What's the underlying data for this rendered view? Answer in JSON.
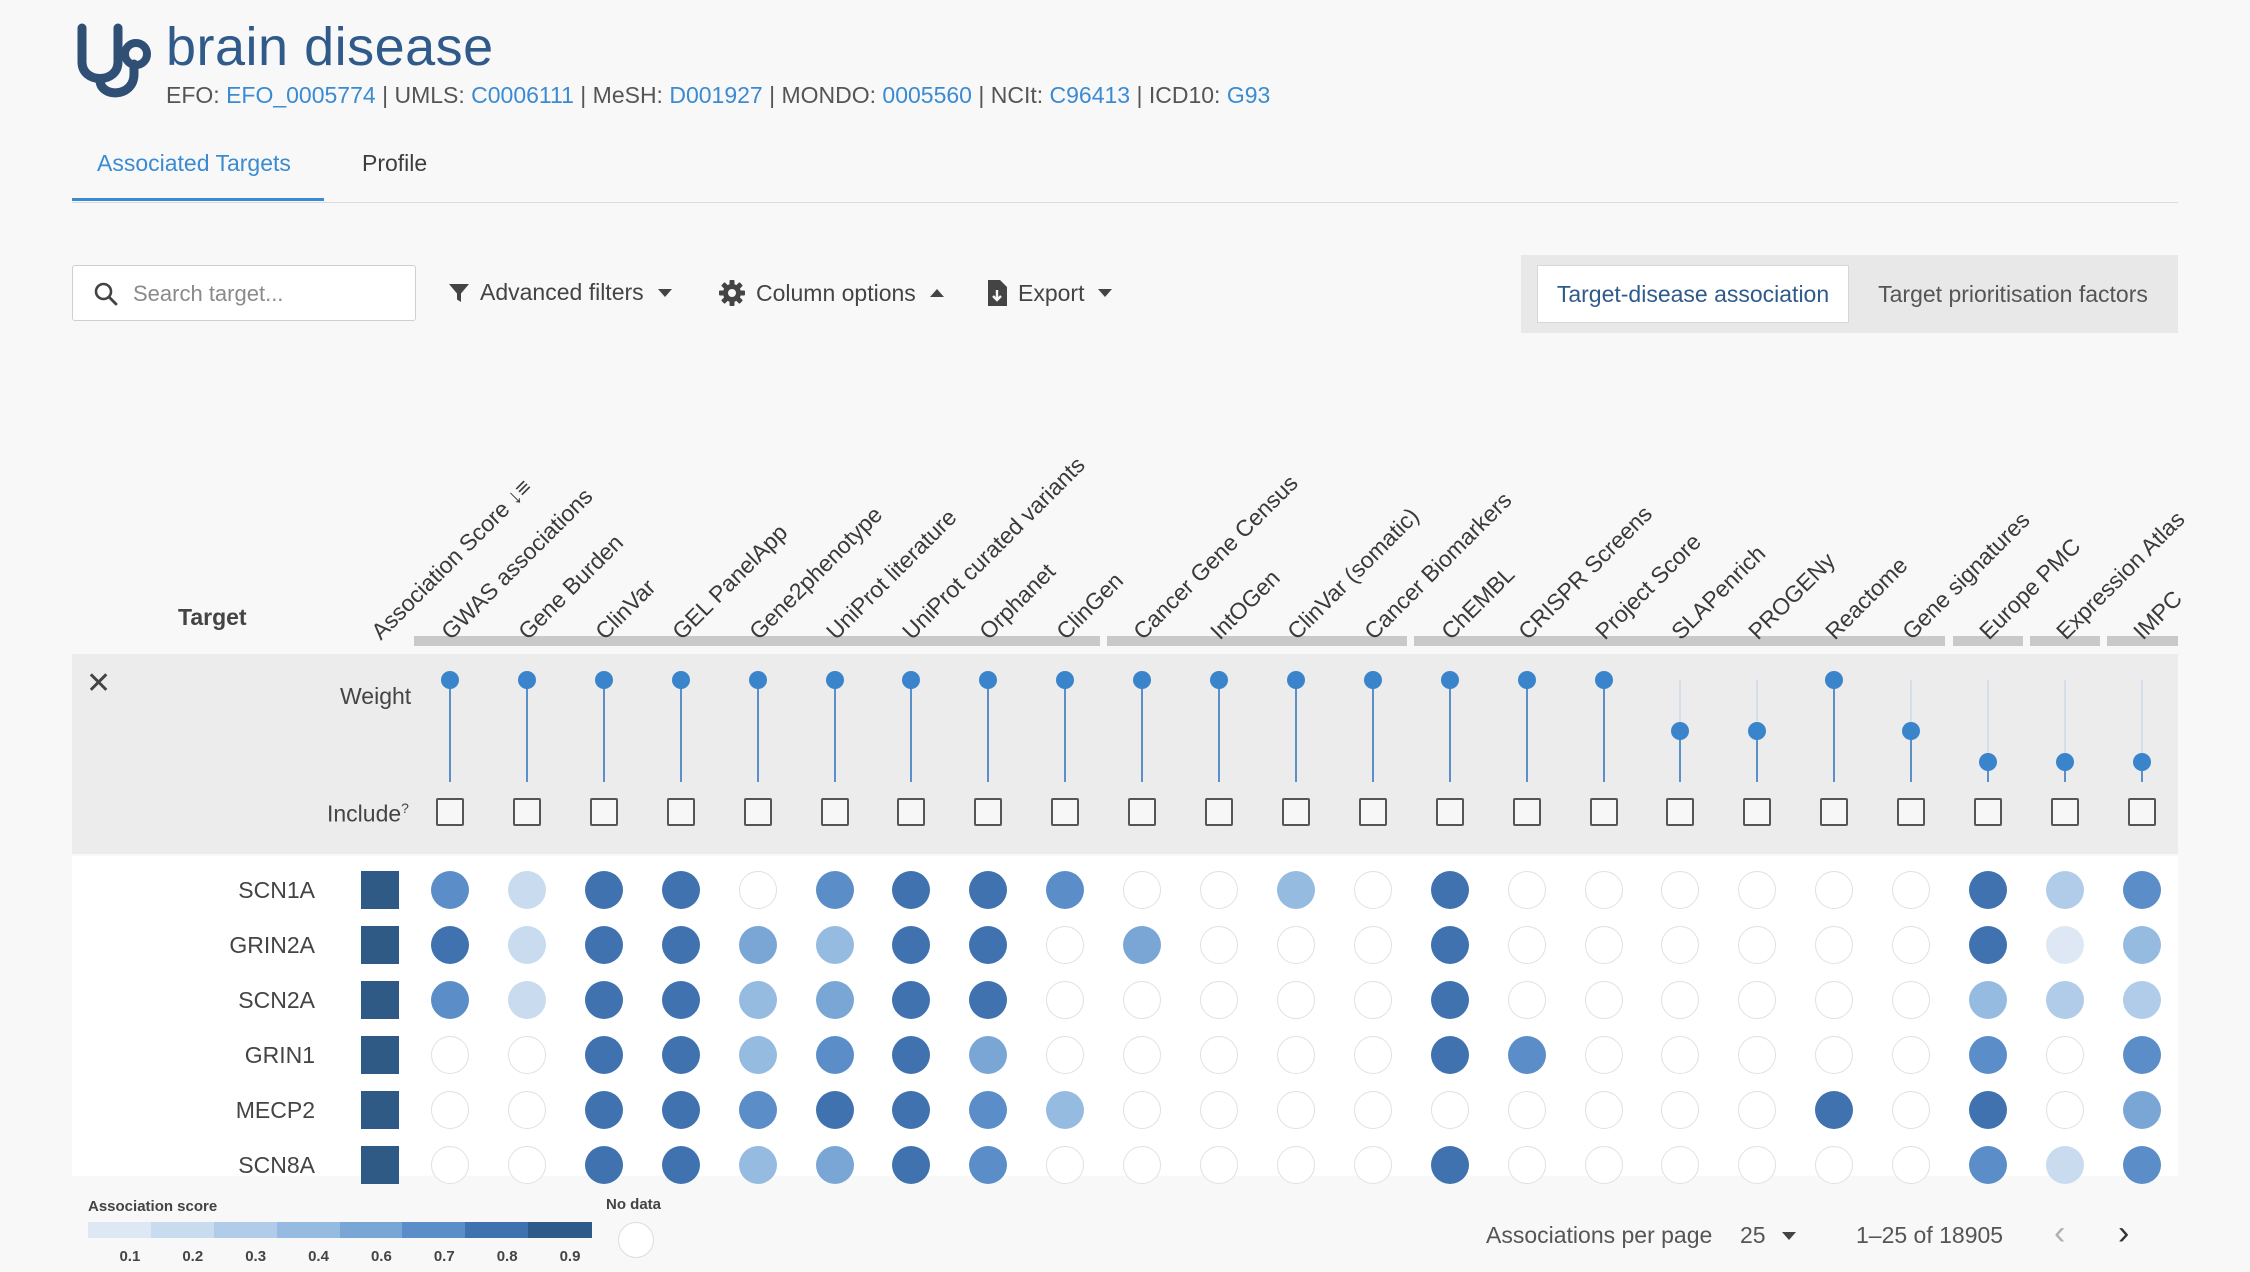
{
  "header": {
    "title": "brain disease",
    "xrefs": [
      {
        "label": "EFO:",
        "value": "EFO_0005774"
      },
      {
        "label": "UMLS:",
        "value": "C0006111"
      },
      {
        "label": "MeSH:",
        "value": "D001927"
      },
      {
        "label": "MONDO:",
        "value": "0005560"
      },
      {
        "label": "NCIt:",
        "value": "C96413"
      },
      {
        "label": "ICD10:",
        "value": "G93"
      }
    ]
  },
  "tabs": [
    {
      "label": "Associated Targets",
      "active": true
    },
    {
      "label": "Profile",
      "active": false
    }
  ],
  "toolbar": {
    "search_placeholder": "Search target...",
    "advanced_filters": "Advanced filters",
    "column_options": "Column options",
    "export": "Export",
    "view_toggle": [
      "Target-disease association",
      "Target prioritisation factors"
    ]
  },
  "table": {
    "target_header": "Target",
    "weight_label": "Weight",
    "include_label": "Include",
    "include_help": "?",
    "columns": [
      "Association Score",
      "GWAS associations",
      "Gene Burden",
      "ClinVar",
      "GEL PanelApp",
      "Gene2phenotype",
      "UniProt literature",
      "UniProt curated variants",
      "Orphanet",
      "ClinGen",
      "Cancer Gene Census",
      "IntOGen",
      "ClinVar (somatic)",
      "Cancer Biomarkers",
      "ChEMBL",
      "CRISPR Screens",
      "Project Score",
      "SLAPenrich",
      "PROGENy",
      "Reactome",
      "Gene signatures",
      "Europe PMC",
      "Expression Atlas",
      "IMPC"
    ],
    "weights": [
      1,
      1,
      1,
      1,
      1,
      1,
      1,
      1,
      1,
      1,
      1,
      1,
      1,
      1,
      1,
      1,
      0.5,
      0.5,
      1,
      0.5,
      0.2,
      0.2,
      0.2
    ],
    "rows": [
      {
        "target": "SCN1A",
        "scores": [
          0.8,
          0.2,
          0.9,
          0.9,
          null,
          0.8,
          0.9,
          0.9,
          0.7,
          null,
          null,
          0.5,
          null,
          0.9,
          null,
          null,
          null,
          null,
          null,
          null,
          0.9,
          0.4,
          0.8
        ]
      },
      {
        "target": "GRIN2A",
        "scores": [
          0.9,
          0.2,
          0.9,
          0.9,
          0.6,
          0.5,
          0.9,
          0.9,
          null,
          0.6,
          null,
          null,
          null,
          0.9,
          null,
          null,
          null,
          null,
          null,
          null,
          0.9,
          0.1,
          0.5
        ]
      },
      {
        "target": "SCN2A",
        "scores": [
          0.8,
          0.2,
          0.9,
          0.9,
          0.5,
          0.6,
          0.9,
          0.9,
          null,
          null,
          null,
          null,
          null,
          0.9,
          null,
          null,
          null,
          null,
          null,
          null,
          0.5,
          0.4,
          0.4
        ]
      },
      {
        "target": "GRIN1",
        "scores": [
          null,
          null,
          0.9,
          0.9,
          0.5,
          0.8,
          0.9,
          0.6,
          null,
          null,
          null,
          null,
          null,
          0.9,
          0.8,
          null,
          null,
          null,
          null,
          null,
          0.8,
          null,
          0.8
        ]
      },
      {
        "target": "MECP2",
        "scores": [
          null,
          null,
          0.9,
          0.9,
          0.8,
          0.9,
          0.9,
          0.8,
          0.5,
          null,
          null,
          null,
          null,
          null,
          null,
          null,
          null,
          null,
          0.9,
          null,
          0.9,
          null,
          0.6
        ]
      },
      {
        "target": "SCN8A",
        "scores": [
          null,
          null,
          0.9,
          0.9,
          0.5,
          0.6,
          0.9,
          0.8,
          null,
          null,
          null,
          null,
          null,
          0.9,
          null,
          null,
          null,
          null,
          null,
          null,
          0.8,
          0.2,
          0.8
        ]
      }
    ]
  },
  "legend": {
    "title": "Association score",
    "ticks": [
      "0.1",
      "0.2",
      "0.3",
      "0.4",
      "0.6",
      "0.7",
      "0.8",
      "0.9"
    ],
    "colors": [
      "#dde8f4",
      "#c8dbef",
      "#b0cce8",
      "#96bbe0",
      "#7aa6d6",
      "#5b8ec8",
      "#3f72ae",
      "#2e5a8a"
    ],
    "nodata_label": "No data"
  },
  "pagination": {
    "per_page_label": "Associations per page",
    "per_page_value": "25",
    "range": "1–25 of 18905"
  }
}
